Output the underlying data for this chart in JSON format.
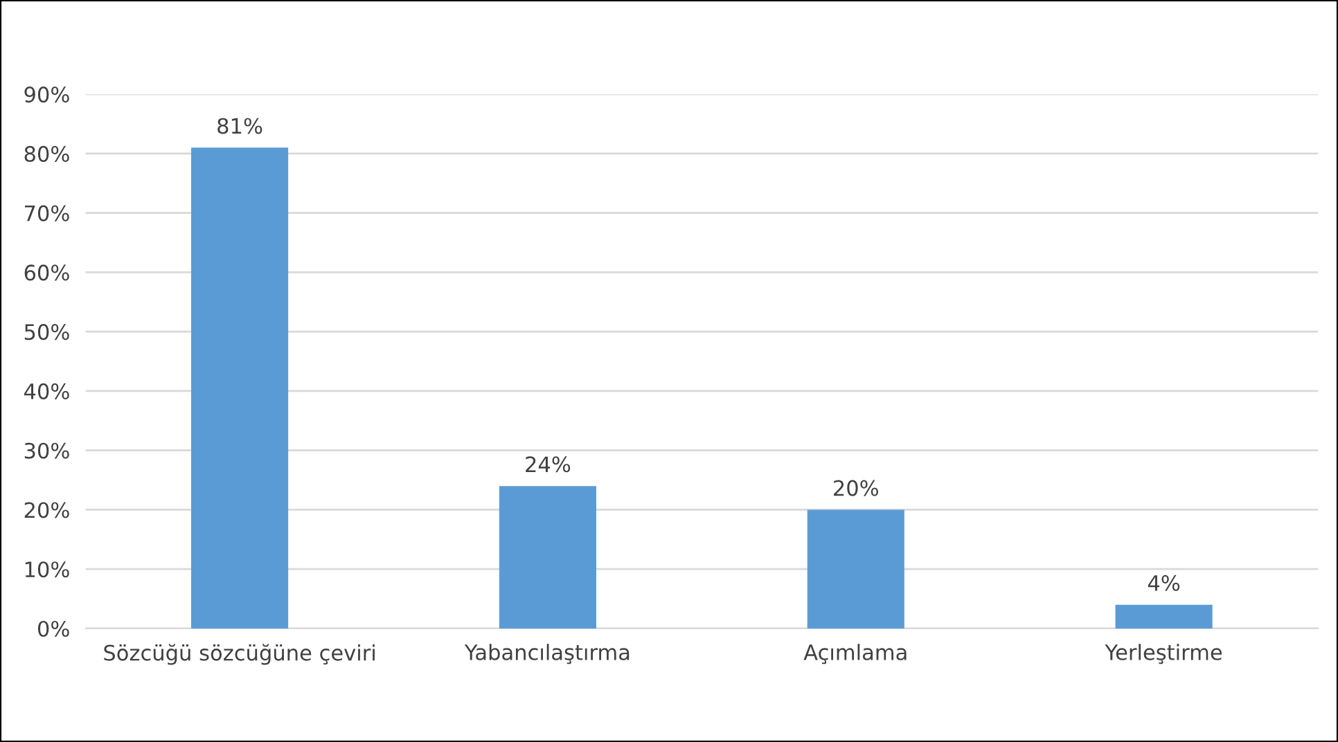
{
  "chart_data": {
    "type": "bar",
    "categories": [
      "Sözcüğü sözcüğüne çeviri",
      "Yabancılaştırma",
      "Açımlama",
      "Yerleştirme"
    ],
    "values": [
      81,
      24,
      20,
      4
    ],
    "value_labels": [
      "81%",
      "24%",
      "20%",
      "4%"
    ],
    "color": "#5b9bd5",
    "ylim": [
      0,
      90
    ],
    "yticks": [
      {
        "value": 0,
        "label": "0%"
      },
      {
        "value": 10,
        "label": "10%"
      },
      {
        "value": 20,
        "label": "20%"
      },
      {
        "value": 30,
        "label": "30%"
      },
      {
        "value": 40,
        "label": "40%"
      },
      {
        "value": 50,
        "label": "50%"
      },
      {
        "value": 60,
        "label": "60%"
      },
      {
        "value": 70,
        "label": "70%"
      },
      {
        "value": 80,
        "label": "80%"
      },
      {
        "value": 90,
        "label": "90%"
      }
    ],
    "grid": "y",
    "legend": false
  }
}
